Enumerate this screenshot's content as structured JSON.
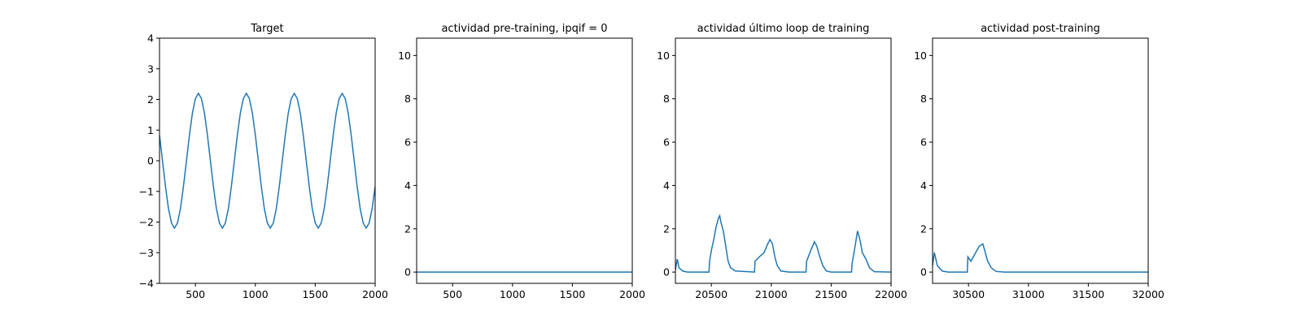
{
  "chart_data": [
    {
      "type": "line",
      "title": "Target",
      "color": "#1f77b4",
      "grid": false,
      "x": [
        200,
        225,
        250,
        275,
        300,
        325,
        350,
        375,
        400,
        425,
        450,
        475,
        500,
        525,
        550,
        575,
        600,
        625,
        650,
        675,
        700,
        725,
        750,
        775,
        800,
        825,
        850,
        875,
        900,
        925,
        950,
        975,
        1000,
        1025,
        1050,
        1075,
        1100,
        1125,
        1150,
        1175,
        1200,
        1225,
        1250,
        1275,
        1300,
        1325,
        1350,
        1375,
        1400,
        1425,
        1450,
        1475,
        1500,
        1525,
        1550,
        1575,
        1600,
        1625,
        1650,
        1675,
        1700,
        1725,
        1750,
        1775,
        1800,
        1825,
        1850,
        1875,
        1900,
        1925,
        1950,
        1975,
        2000
      ],
      "values": [
        0.84,
        0,
        -0.84,
        -1.56,
        -2.03,
        -2.2,
        -2.03,
        -1.56,
        -0.84,
        0,
        0.84,
        1.56,
        2.03,
        2.2,
        2.03,
        1.56,
        0.84,
        0,
        -0.84,
        -1.56,
        -2.03,
        -2.2,
        -2.03,
        -1.56,
        -0.84,
        0,
        0.84,
        1.56,
        2.03,
        2.2,
        2.03,
        1.56,
        0.84,
        0,
        -0.84,
        -1.56,
        -2.03,
        -2.2,
        -2.03,
        -1.56,
        -0.84,
        0,
        0.84,
        1.56,
        2.03,
        2.2,
        2.03,
        1.56,
        0.84,
        0,
        -0.84,
        -1.56,
        -2.03,
        -2.2,
        -2.03,
        -1.56,
        -0.84,
        0,
        0.84,
        1.56,
        2.03,
        2.2,
        2.03,
        1.56,
        0.84,
        0,
        -0.84,
        -1.56,
        -2.03,
        -2.2,
        -2.03,
        -1.56,
        -0.84
      ],
      "xlim": [
        200,
        2000
      ],
      "xticks": [
        500,
        1000,
        1500,
        2000
      ],
      "ylim": [
        -4,
        4
      ],
      "yticks": [
        {
          "value": -4,
          "label": "−4"
        },
        {
          "value": -3,
          "label": "−3"
        },
        {
          "value": -2,
          "label": "−2"
        },
        {
          "value": -1,
          "label": "−1"
        },
        0,
        1,
        2,
        3,
        4
      ]
    },
    {
      "type": "line",
      "title": "actividad pre-training, ipqif = 0",
      "color": "#1f77b4",
      "grid": false,
      "x": [
        200,
        1100,
        2000
      ],
      "values": [
        0,
        0,
        0
      ],
      "xlim": [
        200,
        2000
      ],
      "xticks": [
        500,
        1000,
        1500,
        2000
      ],
      "ylim": [
        -0.52,
        10.8
      ],
      "yticks": [
        0,
        2,
        4,
        6,
        8,
        10
      ]
    },
    {
      "type": "line",
      "title": "actividad último loop de training",
      "color": "#1f77b4",
      "grid": false,
      "x": [
        20200,
        20215,
        20230,
        20260,
        20300,
        20480,
        20485,
        20500,
        20520,
        20540,
        20560,
        20570,
        20580,
        20600,
        20620,
        20640,
        20660,
        20700,
        20860,
        20865,
        20900,
        20940,
        20970,
        20990,
        21010,
        21030,
        21050,
        21080,
        21150,
        21290,
        21295,
        21330,
        21360,
        21380,
        21400,
        21430,
        21460,
        21500,
        21670,
        21675,
        21700,
        21720,
        21740,
        21760,
        21790,
        21820,
        21860,
        22000
      ],
      "values": [
        0.1,
        0.6,
        0.2,
        0.05,
        0,
        0,
        0.5,
        1.0,
        1.5,
        2.1,
        2.5,
        2.6,
        2.3,
        1.9,
        1.2,
        0.5,
        0.2,
        0.05,
        0,
        0.5,
        0.7,
        0.9,
        1.3,
        1.5,
        1.3,
        0.7,
        0.3,
        0.05,
        0,
        0,
        0.5,
        1.0,
        1.4,
        1.2,
        0.8,
        0.3,
        0.05,
        0,
        0,
        0.4,
        1.2,
        1.9,
        1.5,
        0.9,
        0.6,
        0.2,
        0.02,
        0
      ],
      "xlim": [
        20200,
        22000
      ],
      "xticks": [
        20500,
        21000,
        21500,
        22000
      ],
      "ylim": [
        -0.52,
        10.8
      ],
      "yticks": [
        0,
        2,
        4,
        6,
        8,
        10
      ]
    },
    {
      "type": "line",
      "title": "actividad post-training",
      "color": "#1f77b4",
      "grid": false,
      "x": [
        30200,
        30215,
        30240,
        30280,
        30330,
        30490,
        30495,
        30520,
        30550,
        30590,
        30620,
        30640,
        30660,
        30690,
        30730,
        30800,
        32000
      ],
      "values": [
        0.3,
        0.9,
        0.3,
        0.05,
        0,
        0,
        0.7,
        0.5,
        0.8,
        1.2,
        1.3,
        0.9,
        0.5,
        0.2,
        0.03,
        0,
        0
      ],
      "xlim": [
        30200,
        32000
      ],
      "xticks": [
        30500,
        31000,
        31500,
        32000
      ],
      "ylim": [
        -0.52,
        10.8
      ],
      "yticks": [
        0,
        2,
        4,
        6,
        8,
        10
      ]
    }
  ]
}
